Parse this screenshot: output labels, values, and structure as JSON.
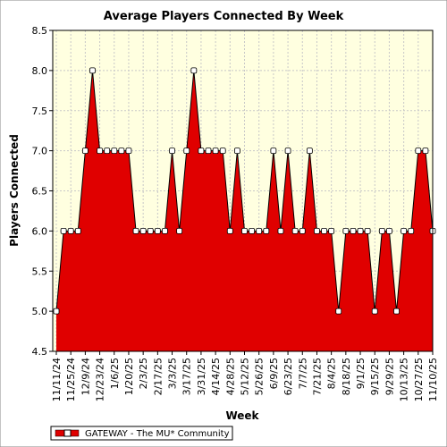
{
  "chart_data": {
    "type": "area",
    "title": "Average Players Connected By Week",
    "xlabel": "Week",
    "ylabel": "Players Connected",
    "ylim": [
      4.5,
      8.5
    ],
    "yticks": [
      "4.5",
      "5.0",
      "5.5",
      "6.0",
      "6.5",
      "7.0",
      "7.5",
      "8.0",
      "8.5"
    ],
    "grid": true,
    "legend_position": "bottom-left",
    "colors": {
      "fill": "#e00000",
      "plot_bg": "#ffffe0",
      "grid": "#c8c8c8",
      "marker_fill": "#ffffff"
    },
    "xtick_labels": [
      "11/11/24",
      "11/25/24",
      "12/9/24",
      "12/23/24",
      "1/6/25",
      "1/20/25",
      "2/3/25",
      "2/17/25",
      "3/3/25",
      "3/17/25",
      "3/31/25",
      "4/14/25",
      "4/28/25",
      "5/12/25",
      "5/26/25",
      "6/9/25",
      "6/23/25",
      "7/7/25",
      "7/21/25",
      "8/4/25",
      "8/18/25",
      "9/1/25",
      "9/15/25",
      "9/29/25",
      "10/13/25",
      "10/27/25",
      "11/10/25"
    ],
    "series": [
      {
        "name": "GATEWAY - The MU* Community",
        "x": [
          "11/11/24",
          "11/18/24",
          "11/25/24",
          "12/2/24",
          "12/9/24",
          "12/16/24",
          "12/23/24",
          "12/30/24",
          "1/6/25",
          "1/13/25",
          "1/20/25",
          "1/27/25",
          "2/3/25",
          "2/10/25",
          "2/17/25",
          "2/24/25",
          "3/3/25",
          "3/10/25",
          "3/17/25",
          "3/24/25",
          "3/31/25",
          "4/7/25",
          "4/14/25",
          "4/21/25",
          "4/28/25",
          "5/5/25",
          "5/12/25",
          "5/19/25",
          "5/26/25",
          "6/2/25",
          "6/9/25",
          "6/16/25",
          "6/23/25",
          "6/30/25",
          "7/7/25",
          "7/14/25",
          "7/21/25",
          "7/28/25",
          "8/4/25",
          "8/11/25",
          "8/18/25",
          "8/25/25",
          "9/1/25",
          "9/8/25",
          "9/15/25",
          "9/22/25",
          "9/29/25",
          "10/6/25",
          "10/13/25",
          "10/20/25",
          "10/27/25",
          "11/3/25",
          "11/10/25"
        ],
        "values": [
          5,
          6,
          6,
          6,
          7,
          8,
          7,
          7,
          7,
          7,
          7,
          6,
          6,
          6,
          6,
          6,
          7,
          6,
          7,
          8,
          7,
          7,
          7,
          7,
          6,
          7,
          6,
          6,
          6,
          6,
          7,
          6,
          7,
          6,
          6,
          7,
          6,
          6,
          6,
          5,
          6,
          6,
          6,
          6,
          5,
          6,
          6,
          5,
          6,
          6,
          7,
          7,
          6
        ]
      }
    ]
  }
}
